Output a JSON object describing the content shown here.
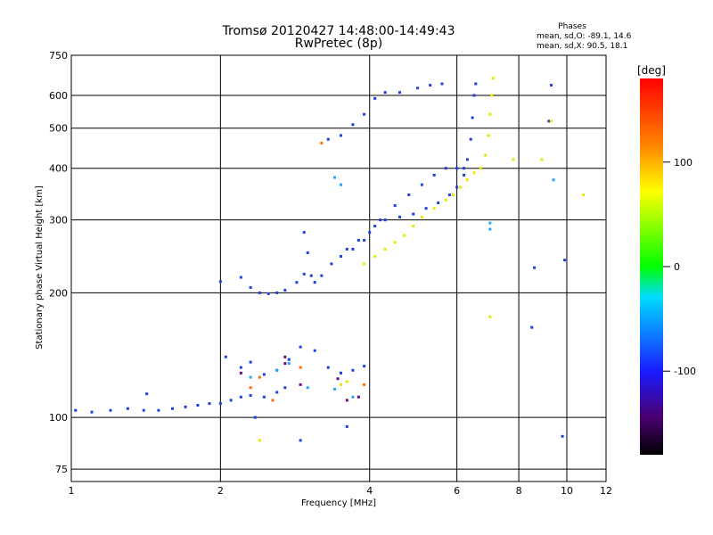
{
  "chart_data": {
    "type": "scatter",
    "title": "Tromsø 20120427 14:48:00-14:49:43",
    "subtitle": "RwPretec (8p)",
    "phases": {
      "heading": "Phases",
      "line_o": "mean, sd,O: -89.1, 14.6",
      "line_x": "mean, sd,X:  90.5, 18.1"
    },
    "xlabel": "Frequency [MHz]",
    "ylabel": "Stationary phase Virtual Height [km]",
    "x_scale": "log",
    "y_scale": "log",
    "xlim": [
      1,
      12
    ],
    "ylim": [
      70,
      750
    ],
    "x_ticks": [
      1,
      2,
      4,
      6,
      8,
      10,
      12
    ],
    "x_tick_labels": [
      "1",
      "2",
      "4",
      "6",
      "8",
      "10",
      "12"
    ],
    "y_ticks": [
      75,
      100,
      200,
      300,
      400,
      500,
      600,
      750
    ],
    "y_tick_labels": [
      "75",
      "100",
      "200",
      "300",
      "400",
      "500",
      "600",
      "750"
    ],
    "grid": true,
    "colorbar": {
      "label": "[deg]",
      "range": [
        -180,
        180
      ],
      "ticks": [
        100,
        0,
        -100
      ],
      "tick_labels": [
        "100",
        "0",
        "-100"
      ]
    },
    "series": [
      {
        "values": [
          [
            1.02,
            104
          ],
          [
            1.1,
            103
          ],
          [
            1.2,
            104
          ],
          [
            1.3,
            105
          ],
          [
            1.4,
            104
          ],
          [
            1.5,
            104
          ],
          [
            1.6,
            105
          ],
          [
            1.7,
            106
          ],
          [
            1.8,
            107
          ],
          [
            1.9,
            108
          ],
          [
            2.0,
            108
          ],
          [
            2.1,
            110
          ],
          [
            2.2,
            112
          ],
          [
            2.3,
            113
          ],
          [
            2.45,
            112
          ],
          [
            2.6,
            115
          ],
          [
            2.7,
            118
          ],
          [
            1.42,
            114
          ],
          [
            2.05,
            140
          ],
          [
            2.2,
            132
          ],
          [
            2.3,
            136
          ],
          [
            2.45,
            127
          ],
          [
            2.6,
            130
          ],
          [
            2.75,
            138
          ],
          [
            2.9,
            148
          ],
          [
            3.1,
            145
          ],
          [
            3.3,
            132
          ],
          [
            3.5,
            128
          ],
          [
            3.7,
            130
          ],
          [
            3.9,
            133
          ],
          [
            2.0,
            213
          ],
          [
            2.2,
            218
          ],
          [
            2.3,
            206
          ],
          [
            2.4,
            200
          ],
          [
            2.5,
            199
          ],
          [
            2.6,
            200
          ],
          [
            2.7,
            203
          ],
          [
            2.85,
            212
          ],
          [
            2.95,
            222
          ],
          [
            2.95,
            280
          ],
          [
            3.0,
            250
          ],
          [
            3.05,
            220
          ],
          [
            3.1,
            212
          ],
          [
            3.2,
            220
          ],
          [
            3.35,
            235
          ],
          [
            3.5,
            245
          ],
          [
            3.7,
            255
          ],
          [
            3.9,
            268
          ],
          [
            4.1,
            290
          ],
          [
            4.3,
            300
          ],
          [
            4.6,
            305
          ],
          [
            4.9,
            310
          ],
          [
            5.2,
            320
          ],
          [
            5.5,
            330
          ],
          [
            5.8,
            345
          ],
          [
            6.0,
            360
          ],
          [
            6.2,
            385
          ],
          [
            6.3,
            420
          ],
          [
            6.4,
            470
          ],
          [
            6.45,
            530
          ],
          [
            6.5,
            600
          ],
          [
            6.55,
            640
          ],
          [
            3.3,
            470
          ],
          [
            3.5,
            480
          ],
          [
            3.7,
            510
          ],
          [
            3.9,
            540
          ],
          [
            4.1,
            590
          ],
          [
            4.3,
            610
          ],
          [
            4.6,
            610
          ],
          [
            5.0,
            625
          ],
          [
            5.3,
            635
          ],
          [
            5.6,
            640
          ],
          [
            3.6,
            255
          ],
          [
            3.8,
            268
          ],
          [
            4.0,
            280
          ],
          [
            4.2,
            300
          ],
          [
            4.5,
            325
          ],
          [
            4.8,
            345
          ],
          [
            5.1,
            365
          ],
          [
            5.4,
            385
          ],
          [
            5.7,
            400
          ],
          [
            6.0,
            400
          ],
          [
            6.2,
            400
          ],
          [
            2.35,
            100
          ],
          [
            2.9,
            88
          ],
          [
            3.6,
            95
          ],
          [
            9.3,
            635
          ],
          [
            9.2,
            520
          ],
          [
            8.6,
            230
          ],
          [
            8.5,
            165
          ],
          [
            9.9,
            240
          ],
          [
            9.8,
            90
          ]
        ]
      },
      {
        "values": [
          [
            3.9,
            235
          ],
          [
            4.1,
            245
          ],
          [
            4.3,
            255
          ],
          [
            4.5,
            265
          ],
          [
            4.7,
            275
          ],
          [
            4.9,
            290
          ],
          [
            5.1,
            305
          ],
          [
            5.4,
            320
          ],
          [
            5.7,
            335
          ],
          [
            5.9,
            345
          ],
          [
            6.1,
            360
          ],
          [
            6.3,
            375
          ],
          [
            6.5,
            390
          ],
          [
            6.7,
            400
          ],
          [
            6.85,
            430
          ],
          [
            6.95,
            480
          ],
          [
            7.0,
            540
          ],
          [
            7.05,
            600
          ],
          [
            7.1,
            660
          ],
          [
            3.5,
            120
          ],
          [
            3.6,
            122
          ],
          [
            7.8,
            420
          ],
          [
            8.9,
            420
          ],
          [
            9.3,
            520
          ],
          [
            10.8,
            345
          ],
          [
            7.0,
            175
          ],
          [
            2.4,
            88
          ]
        ]
      },
      {
        "values": [
          [
            2.3,
            125
          ],
          [
            2.6,
            130
          ],
          [
            2.75,
            135
          ],
          [
            3.0,
            118
          ],
          [
            3.4,
            117
          ],
          [
            3.7,
            112
          ],
          [
            9.4,
            375
          ],
          [
            7.0,
            285
          ],
          [
            7.0,
            295
          ],
          [
            3.4,
            380
          ],
          [
            3.5,
            365
          ]
        ]
      },
      {
        "values": [
          [
            2.7,
            140
          ],
          [
            2.9,
            120
          ],
          [
            3.45,
            124
          ],
          [
            3.6,
            110
          ],
          [
            3.8,
            112
          ],
          [
            2.2,
            128
          ],
          [
            2.7,
            135
          ]
        ]
      },
      {
        "values": [
          [
            3.2,
            460
          ],
          [
            2.4,
            125
          ],
          [
            2.55,
            110
          ],
          [
            2.3,
            118
          ],
          [
            2.9,
            132
          ],
          [
            3.9,
            120
          ]
        ]
      }
    ]
  }
}
